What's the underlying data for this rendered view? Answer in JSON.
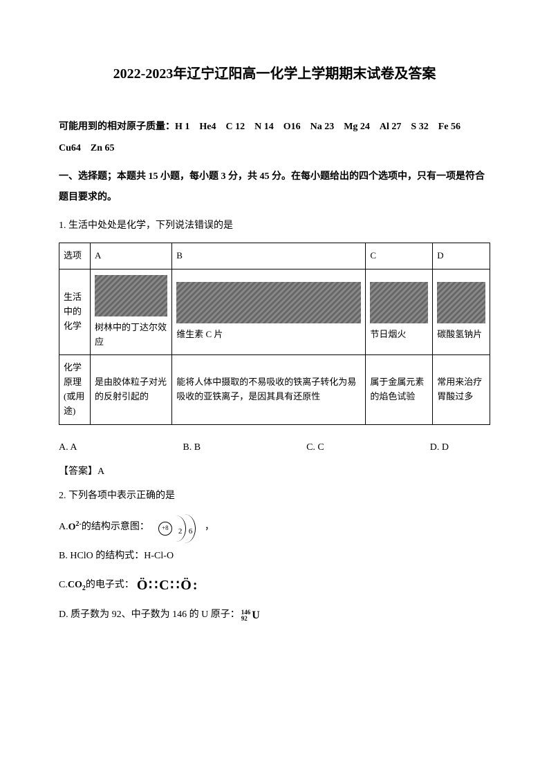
{
  "title": "2022-2023年辽宁辽阳高一化学上学期期末试卷及答案",
  "massInfo": "可能用到的相对原子质量：H 1　He4　C 12　N 14　O16　Na 23　Mg 24　Al 27　S 32　Fe 56　Cu64　Zn 65",
  "instruction": "一、选择题；本题共 15 小题，每小题 3 分，共 45 分。在每小题给出的四个选项中，只有一项是符合题目要求的。",
  "q1": {
    "text": "1. 生活中处处是化学，下列说法错误的是",
    "headerRow": {
      "label": "选项",
      "a": "A",
      "b": "B",
      "c": "C",
      "d": "D"
    },
    "lifeRow": {
      "label": "生活中的化学",
      "a": "树林中的丁达尔效应",
      "b": "维生素 C 片",
      "c": "节日烟火",
      "d": "碳酸氢钠片"
    },
    "principleRow": {
      "label": "化学原理(或用途)",
      "a": "是由胶体粒子对光的反射引起的",
      "b": "能将人体中摄取的不易吸收的铁离子转化为易吸收的亚铁离子，是因其具有还原性",
      "c": "属于金属元素的焰色试验",
      "d": "常用来治疗胃酸过多"
    },
    "options": {
      "a": "A. A",
      "b": "B. B",
      "c": "C. C",
      "d": "D. D"
    },
    "answer": "【答案】A"
  },
  "q2": {
    "text": "2. 下列各项中表示正确的是",
    "optA_prefix": "A. ",
    "optA_formula": "O²⁻",
    "optA_text": "的结构示意图：",
    "optA_suffix": "，",
    "atom_center": "+8",
    "atom_n1": "2",
    "atom_n2": "6",
    "optB": "B. HClO 的结构式：H-Cl-O",
    "optC_prefix": "C. ",
    "optC_formula": "CO₂",
    "optC_text": "的电子式：",
    "optC_lewis": "Ö∷C∷Ö:",
    "optD_prefix": "D. 质子数为 92、中子数为 146 的 U 原子：",
    "isotope_top": "146",
    "isotope_bottom": "92",
    "isotope_element": "U"
  }
}
